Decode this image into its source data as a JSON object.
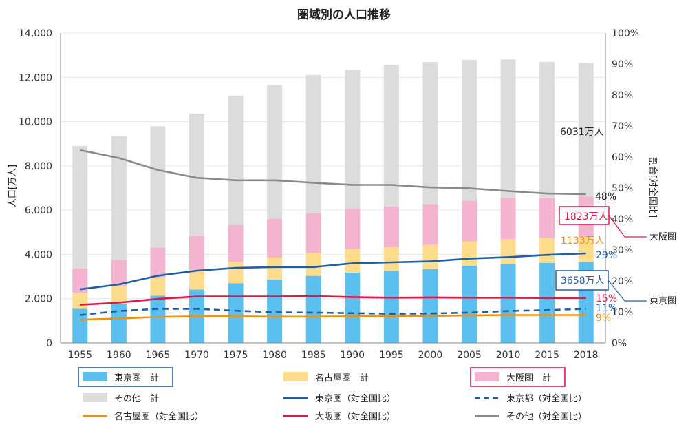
{
  "chart_data": {
    "type": "bar",
    "title": "圏域別の人口推移",
    "ylabel": "人口[万人]",
    "ylabel_right": "割合[対全国比]",
    "ylim": [
      0,
      14000
    ],
    "ylim_right": [
      0,
      100
    ],
    "y_ticks": [
      "0",
      "2,000",
      "4,000",
      "6,000",
      "8,000",
      "10,000",
      "12,000",
      "14,000"
    ],
    "y_ticks_right": [
      "0%",
      "10%",
      "20%",
      "30%",
      "40%",
      "50%",
      "60%",
      "70%",
      "80%",
      "90%",
      "100%"
    ],
    "grid": true,
    "legend": "bottom",
    "categories": [
      "1955",
      "1960",
      "1965",
      "1970",
      "1975",
      "1980",
      "1985",
      "1990",
      "1995",
      "2000",
      "2005",
      "2010",
      "2015",
      "2018"
    ],
    "bar_series": [
      {
        "name": "東京圏　計",
        "color": "#5bc0ef",
        "values": [
          1540,
          1780,
          2130,
          2410,
          2700,
          2860,
          3030,
          3180,
          3260,
          3340,
          3480,
          3560,
          3610,
          3658
        ]
      },
      {
        "name": "名古屋圏　計",
        "color": "#fddc8c",
        "values": [
          720,
          770,
          830,
          900,
          960,
          1000,
          1030,
          1060,
          1080,
          1090,
          1110,
          1130,
          1130,
          1133
        ]
      },
      {
        "name": "大阪圏　計",
        "color": "#f4b4d0",
        "values": [
          1100,
          1200,
          1360,
          1530,
          1660,
          1750,
          1800,
          1820,
          1830,
          1840,
          1840,
          1850,
          1830,
          1823
        ]
      },
      {
        "name": "その他　計",
        "color": "#dcdcdc",
        "values": [
          5540,
          5590,
          5470,
          5520,
          5850,
          6040,
          6250,
          6270,
          6390,
          6420,
          6360,
          6270,
          6130,
          6031
        ]
      }
    ],
    "line_series": [
      {
        "name": "東京圏（対全国比）",
        "color": "#1f5fa6",
        "dashed": false,
        "values": [
          17.3,
          18.9,
          21.7,
          23.3,
          24.2,
          24.5,
          24.5,
          25.7,
          26.0,
          26.3,
          27.2,
          27.7,
          28.4,
          28.9
        ]
      },
      {
        "name": "東京都（対全国比）",
        "color": "#1f5fa6",
        "dashed": true,
        "values": [
          9.0,
          10.3,
          11.0,
          11.0,
          10.4,
          9.9,
          9.8,
          9.6,
          9.4,
          9.5,
          9.8,
          10.3,
          10.6,
          11.0
        ]
      },
      {
        "name": "名古屋圏（対全国比）",
        "color": "#f0900f",
        "dashed": false,
        "values": [
          7.5,
          7.9,
          8.4,
          8.6,
          8.6,
          8.5,
          8.5,
          8.6,
          8.6,
          8.7,
          8.9,
          9.0,
          9.0,
          9.0
        ]
      },
      {
        "name": "大阪圏（対全国比）",
        "color": "#e0184a",
        "dashed": false,
        "values": [
          12.3,
          13.0,
          14.2,
          15.0,
          15.0,
          15.0,
          15.1,
          14.8,
          14.6,
          14.7,
          14.6,
          14.6,
          14.5,
          14.5
        ]
      },
      {
        "name": "その他（対全国比）",
        "color": "#8a8a8a",
        "dashed": false,
        "values": [
          62.2,
          59.7,
          55.8,
          53.3,
          52.5,
          52.5,
          51.7,
          51.0,
          51.0,
          50.2,
          49.9,
          49.0,
          48.2,
          48.0
        ]
      }
    ],
    "annotations": [
      {
        "text": "6031万人",
        "color": "#222222"
      },
      {
        "text": "48%",
        "color": "#222222"
      },
      {
        "text": "1823万人",
        "color": "#e0184a"
      },
      {
        "text": "大阪圏",
        "color": "#222222"
      },
      {
        "text": "1133万人",
        "color": "#f0900f"
      },
      {
        "text": "29%",
        "color": "#1f5fa6"
      },
      {
        "text": "3658万人",
        "color": "#1f5fa6"
      },
      {
        "text": "東京圏",
        "color": "#222222"
      },
      {
        "text": "15%",
        "color": "#e0184a"
      },
      {
        "text": "11%",
        "color": "#1f5fa6"
      },
      {
        "text": "9%",
        "color": "#f0900f"
      }
    ],
    "legend_items": [
      {
        "label": "東京圏　計",
        "kind": "bar",
        "color": "#5bc0ef",
        "boxed": true,
        "box_color": "#1f5fa6"
      },
      {
        "label": "名古屋圏　計",
        "kind": "bar",
        "color": "#fddc8c",
        "boxed": false
      },
      {
        "label": "大阪圏　計",
        "kind": "bar",
        "color": "#f4b4d0",
        "boxed": true,
        "box_color": "#e0184a"
      },
      {
        "label": "その他　計",
        "kind": "bar",
        "color": "#dcdcdc",
        "boxed": false
      },
      {
        "label": "東京圏（対全国比）",
        "kind": "line",
        "color": "#1f5fa6",
        "dashed": false
      },
      {
        "label": "東京都（対全国比）",
        "kind": "line",
        "color": "#1f5fa6",
        "dashed": true
      },
      {
        "label": "名古屋圏（対全国比）",
        "kind": "line",
        "color": "#f0900f",
        "dashed": false
      },
      {
        "label": "大阪圏（対全国比）",
        "kind": "line",
        "color": "#e0184a",
        "dashed": false
      },
      {
        "label": "その他（対全国比）",
        "kind": "line",
        "color": "#8a8a8a",
        "dashed": false
      }
    ]
  }
}
